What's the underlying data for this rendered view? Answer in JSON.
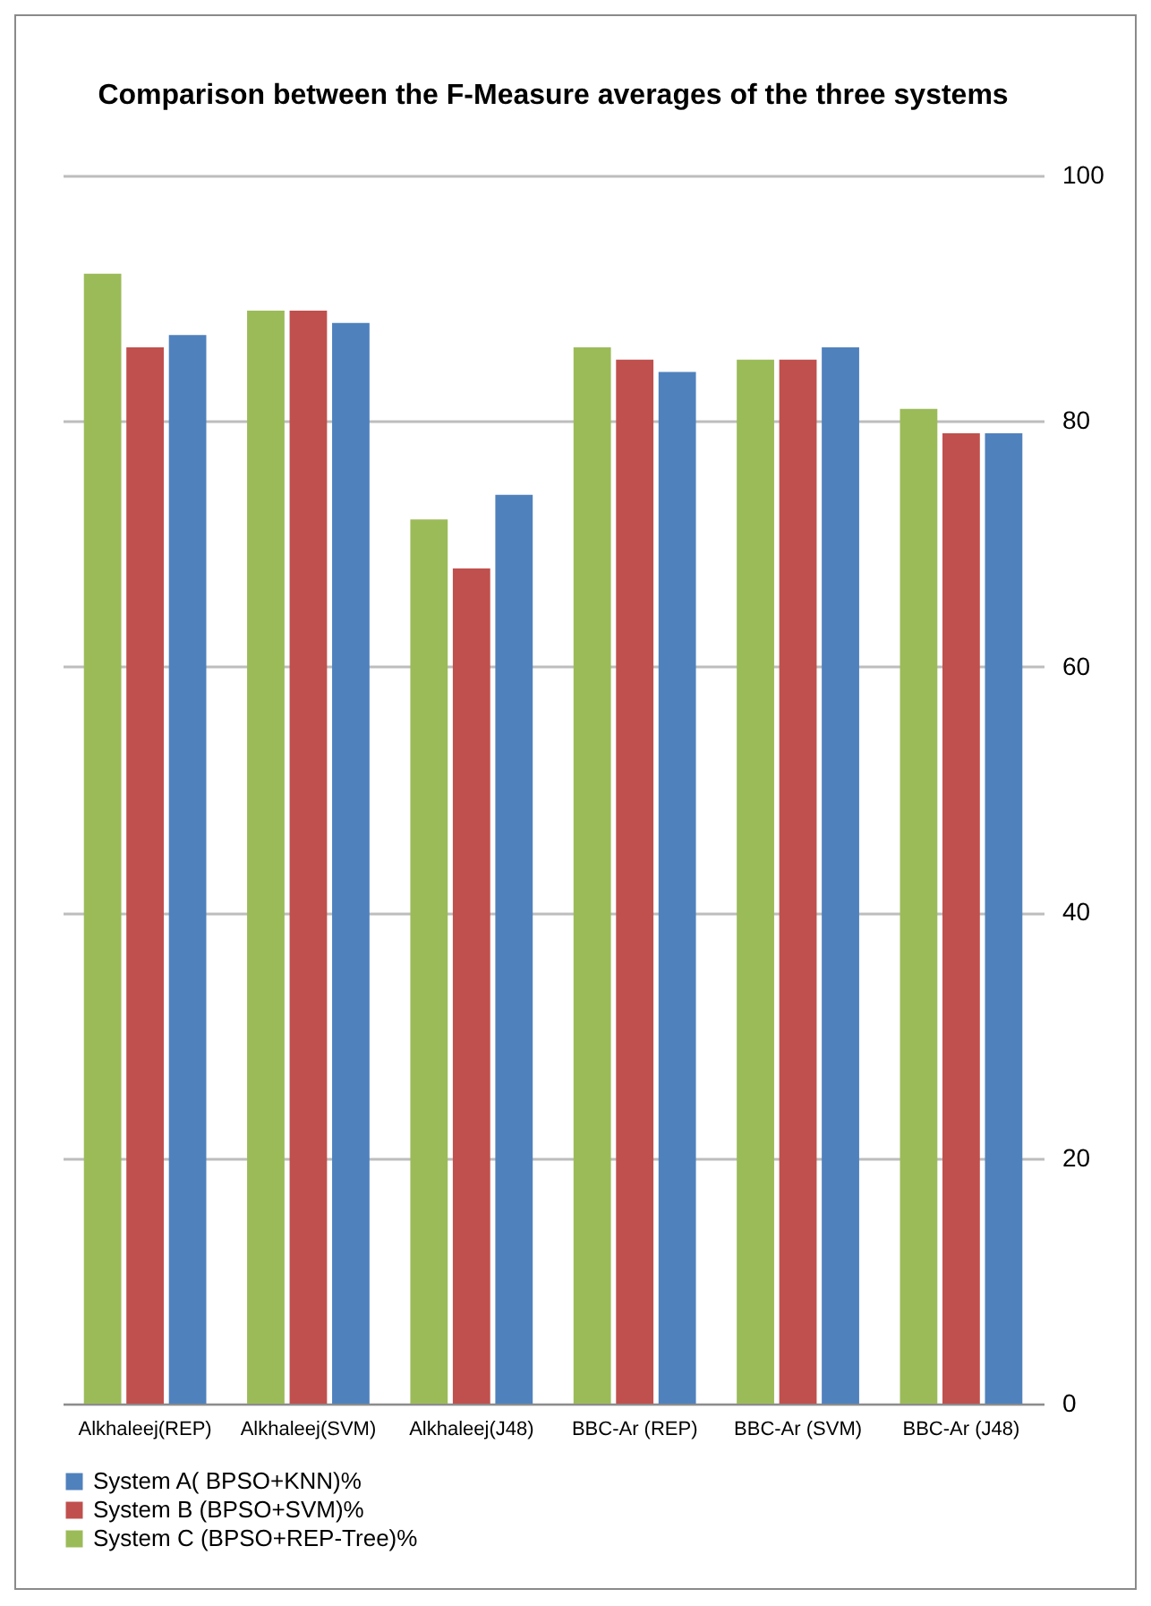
{
  "chart_data": {
    "type": "bar",
    "title": "Comparison between the F-Measure averages of the three systems",
    "categories": [
      "Alkhaleej(REP)",
      "Alkhaleej(SVM)",
      "Alkhaleej(J48)",
      "BBC-Ar (REP)",
      "BBC-Ar (SVM)",
      "BBC-Ar (J48)"
    ],
    "series": [
      {
        "name": "System A( BPSO+KNN)%",
        "color": "#4f81bd",
        "values": [
          87,
          88,
          74,
          84,
          86,
          79
        ]
      },
      {
        "name": "System B (BPSO+SVM)%",
        "color": "#c0504d",
        "values": [
          86,
          89,
          68,
          85,
          85,
          79
        ]
      },
      {
        "name": "System C (BPSO+REP-Tree)%",
        "color": "#9bbb59",
        "values": [
          92,
          89,
          72,
          86,
          85,
          81
        ]
      }
    ],
    "ylim": [
      0,
      100
    ],
    "yticks": [
      0,
      20,
      40,
      60,
      80,
      100
    ],
    "grid": "y",
    "legend": "bottom"
  }
}
